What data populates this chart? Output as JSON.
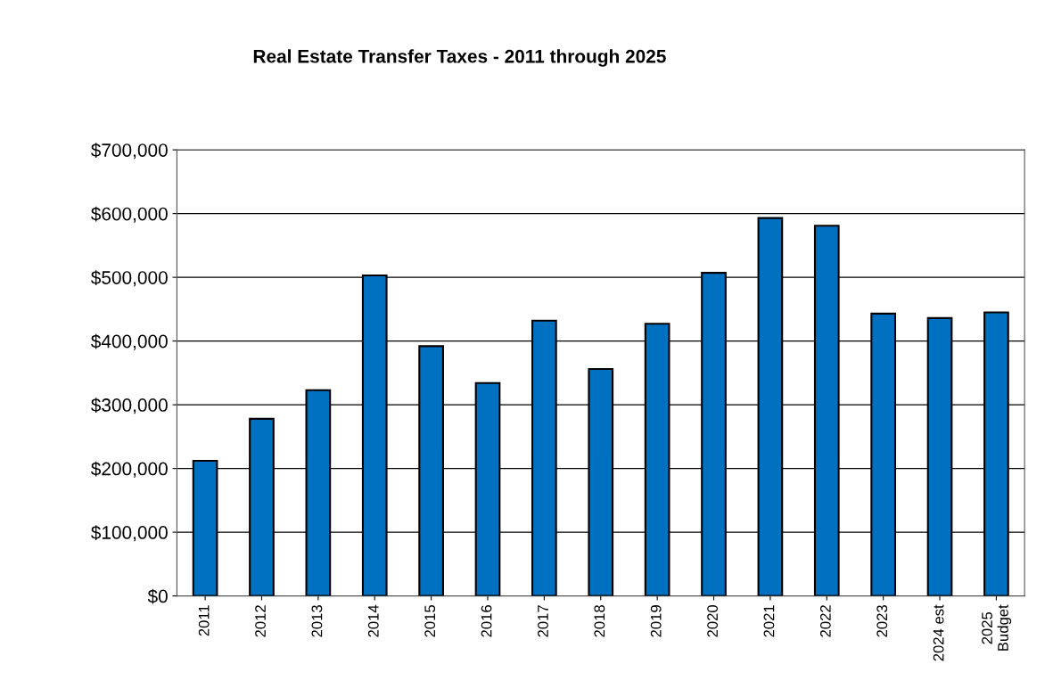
{
  "chart_data": {
    "type": "bar",
    "title": "Real Estate Transfer Taxes - 2011 through 2025",
    "categories": [
      "2011",
      "2012",
      "2013",
      "2014",
      "2015",
      "2016",
      "2017",
      "2018",
      "2019",
      "2020",
      "2021",
      "2022",
      "2023",
      "2024 est",
      "2025\nBudget"
    ],
    "values": [
      212000,
      278000,
      323000,
      503000,
      392000,
      334000,
      432000,
      356000,
      427000,
      507000,
      593000,
      581000,
      443000,
      436000,
      445000
    ],
    "color": "#0070c0",
    "ylim": [
      0,
      700000
    ],
    "yticks": [
      {
        "value": 0,
        "label": "$0"
      },
      {
        "value": 100000,
        "label": "$100,000"
      },
      {
        "value": 200000,
        "label": "$200,000"
      },
      {
        "value": 300000,
        "label": "$300,000"
      },
      {
        "value": 400000,
        "label": "$400,000"
      },
      {
        "value": 500000,
        "label": "$500,000"
      },
      {
        "value": 600000,
        "label": "$600,000"
      },
      {
        "value": 700000,
        "label": "$700,000"
      }
    ],
    "grid": "y"
  }
}
